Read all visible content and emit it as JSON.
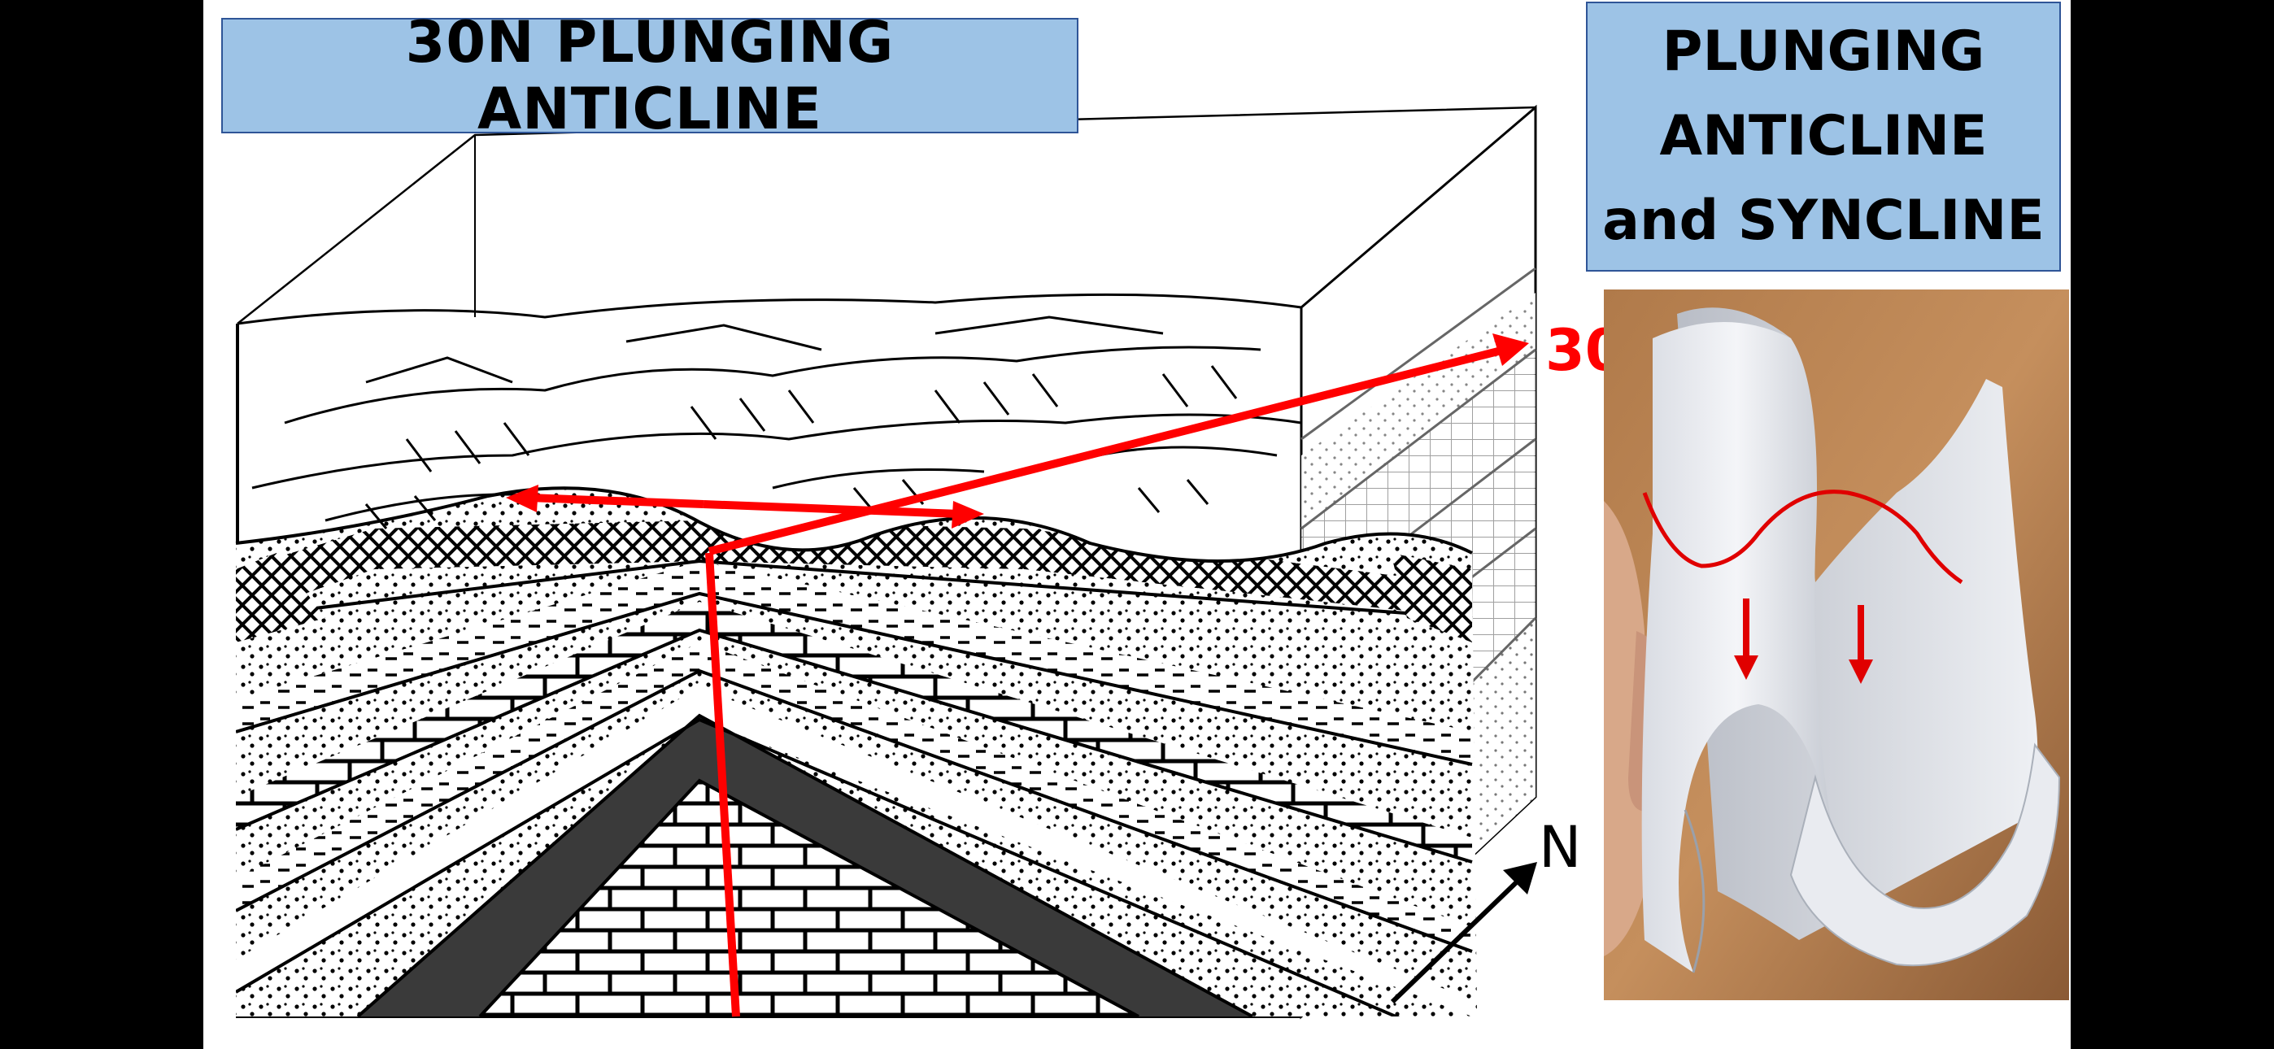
{
  "slide": {
    "main_title": "30N PLUNGING ANTICLINE",
    "side_title_lines": [
      "PLUNGING",
      "ANTICLINE",
      "and SYNCLINE"
    ]
  },
  "diagram": {
    "plunge_label": "30",
    "north_label": "N",
    "colors": {
      "accent": "#ff0000",
      "title_fill": "#9dc3e6",
      "title_border": "#2f5597"
    }
  },
  "photo": {
    "description_icon": "folded-paper-photo"
  }
}
